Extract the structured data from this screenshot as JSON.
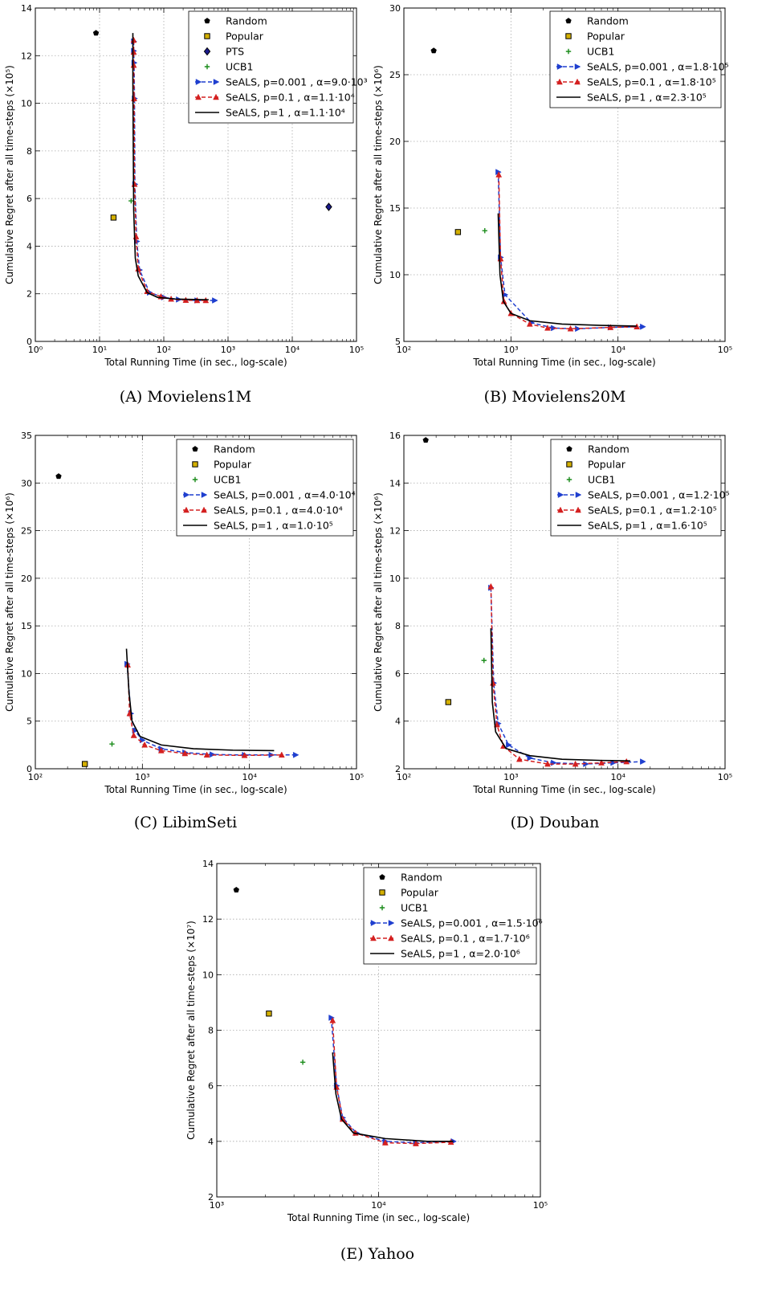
{
  "chart_data": [
    {
      "type": "scatter",
      "caption": "(A) Movielens1M",
      "xlabel": "Total Running Time (in sec., log-scale)",
      "ylabel": "Cumulative Regret after all time-steps (×10⁵)",
      "xscale": "log",
      "xlim": [
        1,
        100000
      ],
      "ylim": [
        0,
        14
      ],
      "yticks": [
        "0",
        "2",
        "4",
        "6",
        "8",
        "10",
        "12",
        "14"
      ],
      "xticks": [
        "10⁰",
        "10¹",
        "10²",
        "10³",
        "10⁴",
        "10⁵"
      ],
      "grid": true,
      "legend_position": "top-right",
      "series": [
        {
          "name": "Random",
          "marker": "pentagon",
          "color": "#000000",
          "points": [
            [
              8.8,
              12.95
            ]
          ]
        },
        {
          "name": "Popular",
          "marker": "square",
          "color": "#d4b000",
          "points": [
            [
              16.5,
              5.2
            ]
          ]
        },
        {
          "name": "PTS",
          "marker": "diamond",
          "color": "#1a1a8c",
          "points": [
            [
              37000,
              5.65
            ]
          ]
        },
        {
          "name": "UCB1",
          "marker": "plus",
          "color": "#1a8c1a",
          "points": [
            [
              31,
              5.9
            ]
          ]
        },
        {
          "name": "SeALS, p=0.001 , α=9.0·10³",
          "marker": "triangle-right",
          "line": "dashed",
          "color": "#1f3fcf",
          "points": [
            [
              34,
              12.6
            ],
            [
              34,
              12.2
            ],
            [
              34.5,
              11.7
            ],
            [
              35,
              10.2
            ],
            [
              35.5,
              6.6
            ],
            [
              38,
              4.2
            ],
            [
              42,
              3.0
            ],
            [
              60,
              2.05
            ],
            [
              100,
              1.85
            ],
            [
              170,
              1.76
            ],
            [
              330,
              1.72
            ],
            [
              620,
              1.72
            ]
          ]
        },
        {
          "name": "SeALS, p=0.1 , α=1.1·10⁴",
          "marker": "triangle-up",
          "line": "dashed",
          "color": "#d42020",
          "points": [
            [
              34,
              12.65
            ],
            [
              34,
              12.15
            ],
            [
              34,
              11.6
            ],
            [
              34.5,
              10.2
            ],
            [
              35,
              6.6
            ],
            [
              37,
              4.4
            ],
            [
              40,
              3.05
            ],
            [
              55,
              2.1
            ],
            [
              90,
              1.88
            ],
            [
              130,
              1.78
            ],
            [
              220,
              1.73
            ],
            [
              330,
              1.72
            ],
            [
              450,
              1.72
            ]
          ]
        },
        {
          "name": "SeALS, p=1 , α=1.1·10⁴",
          "line": "solid",
          "color": "#000000",
          "points": [
            [
              33,
              12.95
            ],
            [
              33,
              11
            ],
            [
              33.5,
              8
            ],
            [
              34,
              5.5
            ],
            [
              36,
              3.5
            ],
            [
              40,
              2.75
            ],
            [
              55,
              2.05
            ],
            [
              80,
              1.85
            ],
            [
              150,
              1.78
            ],
            [
              300,
              1.76
            ],
            [
              500,
              1.75
            ]
          ]
        }
      ]
    },
    {
      "type": "scatter",
      "caption": "(B) Movielens20M",
      "xlabel": "Total Running Time (in sec., log-scale)",
      "ylabel": "Cumulative Regret after all time-steps (×10⁶)",
      "xscale": "log",
      "xlim": [
        100,
        100000
      ],
      "ylim": [
        5,
        30
      ],
      "yticks": [
        "5",
        "10",
        "15",
        "20",
        "25",
        "30"
      ],
      "xticks": [
        "10²",
        "10³",
        "10⁴",
        "10⁵"
      ],
      "grid": true,
      "legend_position": "top-right",
      "series": [
        {
          "name": "Random",
          "marker": "pentagon",
          "color": "#000000",
          "points": [
            [
              190,
              26.8
            ]
          ]
        },
        {
          "name": "Popular",
          "marker": "square",
          "color": "#d4b000",
          "points": [
            [
              320,
              13.2
            ]
          ]
        },
        {
          "name": "UCB1",
          "marker": "plus",
          "color": "#1a8c1a",
          "points": [
            [
              570,
              13.3
            ]
          ]
        },
        {
          "name": "SeALS, p=0.001 , α=1.8·10⁵",
          "marker": "triangle-right",
          "line": "dashed",
          "color": "#1f3fcf",
          "points": [
            [
              760,
              17.7
            ],
            [
              800,
              11.3
            ],
            [
              880,
              8.5
            ],
            [
              1550,
              6.4
            ],
            [
              2500,
              6.0
            ],
            [
              4200,
              5.95
            ],
            [
              8500,
              6.05
            ],
            [
              17000,
              6.1
            ]
          ]
        },
        {
          "name": "SeALS, p=0.1 , α=1.8·10⁵",
          "marker": "triangle-up",
          "line": "dashed",
          "color": "#d42020",
          "points": [
            [
              770,
              17.5
            ],
            [
              800,
              11.2
            ],
            [
              860,
              8.0
            ],
            [
              1000,
              7.1
            ],
            [
              1500,
              6.3
            ],
            [
              2200,
              6.0
            ],
            [
              3600,
              5.95
            ],
            [
              8500,
              6.05
            ],
            [
              15000,
              6.1
            ]
          ]
        },
        {
          "name": "SeALS, p=1 , α=2.3·10⁵",
          "line": "solid",
          "color": "#000000",
          "points": [
            [
              760,
              14.6
            ],
            [
              790,
              10
            ],
            [
              850,
              8
            ],
            [
              1000,
              7.1
            ],
            [
              1500,
              6.55
            ],
            [
              3000,
              6.3
            ],
            [
              7000,
              6.2
            ],
            [
              15000,
              6.15
            ]
          ]
        }
      ]
    },
    {
      "type": "scatter",
      "caption": "(C) LibimSeti",
      "xlabel": "Total Running Time (in sec., log-scale)",
      "ylabel": "Cumulative Regret after all time-steps (×10⁶)",
      "xscale": "log",
      "xlim": [
        100,
        100000
      ],
      "ylim": [
        0,
        35
      ],
      "yticks": [
        "0",
        "5",
        "10",
        "15",
        "20",
        "25",
        "30",
        "35"
      ],
      "xticks": [
        "10²",
        "10³",
        "10⁴",
        "10⁵"
      ],
      "grid": true,
      "legend_position": "top-right",
      "series": [
        {
          "name": "Random",
          "marker": "pentagon",
          "color": "#000000",
          "points": [
            [
              165,
              30.7
            ]
          ]
        },
        {
          "name": "Popular",
          "marker": "square",
          "color": "#d4b000",
          "points": [
            [
              290,
              0.5
            ]
          ]
        },
        {
          "name": "UCB1",
          "marker": "plus",
          "color": "#1a8c1a",
          "points": [
            [
              520,
              2.6
            ]
          ]
        },
        {
          "name": "SeALS, p=0.001 , α=4.0·10⁴",
          "marker": "triangle-right",
          "line": "dashed",
          "color": "#1f3fcf",
          "points": [
            [
              720,
              11.0
            ],
            [
              780,
              5.8
            ],
            [
              850,
              4.0
            ],
            [
              1000,
              3.0
            ],
            [
              1500,
              2.1
            ],
            [
              2500,
              1.7
            ],
            [
              4500,
              1.5
            ],
            [
              9000,
              1.45
            ],
            [
              16000,
              1.45
            ],
            [
              27000,
              1.45
            ]
          ]
        },
        {
          "name": "SeALS, p=0.1 , α=4.0·10⁴",
          "marker": "triangle-up",
          "line": "dashed",
          "color": "#d42020",
          "points": [
            [
              730,
              10.9
            ],
            [
              760,
              5.8
            ],
            [
              830,
              3.5
            ],
            [
              1050,
              2.5
            ],
            [
              1500,
              1.9
            ],
            [
              2500,
              1.6
            ],
            [
              4000,
              1.45
            ],
            [
              9000,
              1.4
            ],
            [
              20000,
              1.45
            ]
          ]
        },
        {
          "name": "SeALS, p=1 , α=1.0·10⁵",
          "line": "solid",
          "color": "#000000",
          "points": [
            [
              710,
              12.6
            ],
            [
              750,
              8
            ],
            [
              800,
              5
            ],
            [
              950,
              3.4
            ],
            [
              1500,
              2.5
            ],
            [
              3000,
              2.1
            ],
            [
              7000,
              1.95
            ],
            [
              17000,
              1.9
            ]
          ]
        }
      ]
    },
    {
      "type": "scatter",
      "caption": "(D) Douban",
      "xlabel": "Total Running Time (in sec., log-scale)",
      "ylabel": "Cumulative Regret after all time-steps (×10⁶)",
      "xscale": "log",
      "xlim": [
        100,
        100000
      ],
      "ylim": [
        2,
        16
      ],
      "yticks": [
        "2",
        "4",
        "6",
        "8",
        "10",
        "12",
        "14",
        "16"
      ],
      "xticks": [
        "10²",
        "10³",
        "10⁴",
        "10⁵"
      ],
      "grid": true,
      "legend_position": "top-right",
      "series": [
        {
          "name": "Random",
          "marker": "pentagon",
          "color": "#000000",
          "points": [
            [
              160,
              15.8
            ]
          ]
        },
        {
          "name": "Popular",
          "marker": "square",
          "color": "#d4b000",
          "points": [
            [
              260,
              4.8
            ]
          ]
        },
        {
          "name": "UCB1",
          "marker": "plus",
          "color": "#1a8c1a",
          "points": [
            [
              560,
              6.55
            ]
          ]
        },
        {
          "name": "SeALS, p=0.001 , α=1.2·10⁵",
          "marker": "triangle-right",
          "line": "dashed",
          "color": "#1f3fcf",
          "points": [
            [
              650,
              9.6
            ],
            [
              690,
              5.6
            ],
            [
              760,
              3.9
            ],
            [
              950,
              3.0
            ],
            [
              1500,
              2.45
            ],
            [
              2500,
              2.25
            ],
            [
              5000,
              2.2
            ],
            [
              9000,
              2.25
            ],
            [
              17000,
              2.3
            ]
          ]
        },
        {
          "name": "SeALS, p=0.1 , α=1.2·10⁵",
          "marker": "triangle-up",
          "line": "dashed",
          "color": "#d42020",
          "points": [
            [
              650,
              9.65
            ],
            [
              680,
              5.6
            ],
            [
              740,
              3.85
            ],
            [
              850,
              2.95
            ],
            [
              1200,
              2.4
            ],
            [
              2200,
              2.2
            ],
            [
              4000,
              2.2
            ],
            [
              7000,
              2.25
            ],
            [
              12000,
              2.3
            ]
          ]
        },
        {
          "name": "SeALS, p=1 , α=1.6·10⁵",
          "line": "solid",
          "color": "#000000",
          "points": [
            [
              650,
              7.9
            ],
            [
              670,
              4.8
            ],
            [
              720,
              3.55
            ],
            [
              900,
              2.85
            ],
            [
              1500,
              2.55
            ],
            [
              3000,
              2.4
            ],
            [
              7000,
              2.35
            ],
            [
              13000,
              2.33
            ]
          ]
        }
      ]
    },
    {
      "type": "scatter",
      "caption": "(E) Yahoo",
      "xlabel": "Total Running Time (in sec., log-scale)",
      "ylabel": "Cumulative Regret after all time-steps (×10⁷)",
      "xscale": "log",
      "xlim": [
        1000,
        100000
      ],
      "ylim": [
        2,
        14
      ],
      "yticks": [
        "2",
        "4",
        "6",
        "8",
        "10",
        "12",
        "14"
      ],
      "xticks": [
        "10³",
        "10⁴",
        "10⁵"
      ],
      "grid": true,
      "legend_position": "top-right",
      "series": [
        {
          "name": "Random",
          "marker": "pentagon",
          "color": "#000000",
          "points": [
            [
              1320,
              13.05
            ]
          ]
        },
        {
          "name": "Popular",
          "marker": "square",
          "color": "#d4b000",
          "points": [
            [
              2100,
              8.6
            ]
          ]
        },
        {
          "name": "UCB1",
          "marker": "plus",
          "color": "#1a8c1a",
          "points": [
            [
              3400,
              6.85
            ]
          ]
        },
        {
          "name": "SeALS, p=0.001 , α=1.5·10⁶",
          "marker": "triangle-right",
          "line": "dashed",
          "color": "#1f3fcf",
          "points": [
            [
              5100,
              8.45
            ],
            [
              5500,
              6.0
            ],
            [
              6000,
              4.85
            ],
            [
              7300,
              4.3
            ],
            [
              11000,
              4.0
            ],
            [
              17000,
              3.95
            ],
            [
              29000,
              4.0
            ]
          ]
        },
        {
          "name": "SeALS, p=0.1 , α=1.7·10⁶",
          "marker": "triangle-up",
          "line": "dashed",
          "color": "#d42020",
          "points": [
            [
              5200,
              8.35
            ],
            [
              5500,
              5.95
            ],
            [
              6000,
              4.8
            ],
            [
              7200,
              4.3
            ],
            [
              11000,
              3.95
            ],
            [
              17000,
              3.92
            ],
            [
              28000,
              3.97
            ]
          ]
        },
        {
          "name": "SeALS, p=1 , α=2.0·10⁶",
          "line": "solid",
          "color": "#000000",
          "points": [
            [
              5200,
              7.2
            ],
            [
              5450,
              5.7
            ],
            [
              5900,
              4.8
            ],
            [
              7000,
              4.3
            ],
            [
              11000,
              4.1
            ],
            [
              20000,
              4.0
            ],
            [
              29000,
              4.0
            ]
          ]
        }
      ]
    }
  ]
}
